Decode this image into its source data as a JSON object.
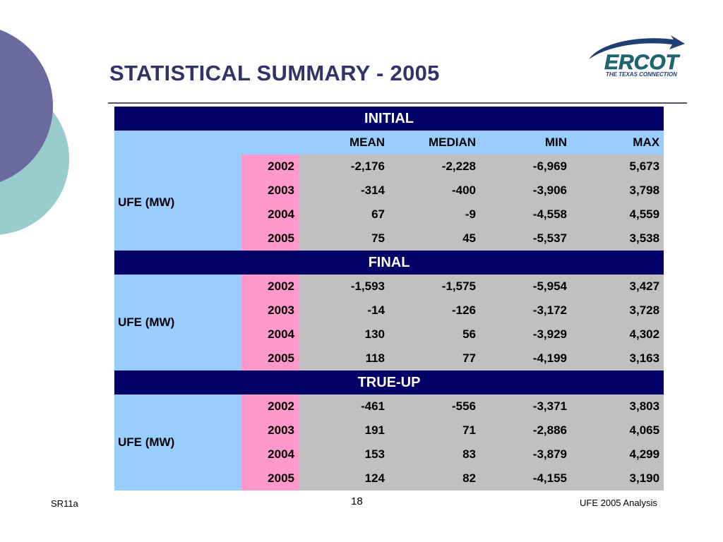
{
  "slide": {
    "title": "STATISTICAL SUMMARY - 2005",
    "colors": {
      "navy": "#000066",
      "blue": "#99ccff",
      "pink": "#ff99cc",
      "gray": "#c0c0c0",
      "title": "#333366",
      "circle_purple": "#6a6a9e",
      "circle_teal": "#99cccc"
    }
  },
  "logo": {
    "name": "ERCOT",
    "tagline": "THE TEXAS CONNECTION",
    "icon": "ercot-swoosh-icon"
  },
  "table": {
    "columns": [
      "MEAN",
      "MEDIAN",
      "MIN",
      "MAX"
    ],
    "sections": [
      {
        "name": "INITIAL",
        "row_label": "UFE (MW)",
        "rows": [
          {
            "year": "2002",
            "mean": "-2,176",
            "median": "-2,228",
            "min": "-6,969",
            "max": "5,673"
          },
          {
            "year": "2003",
            "mean": "-314",
            "median": "-400",
            "min": "-3,906",
            "max": "3,798"
          },
          {
            "year": "2004",
            "mean": "67",
            "median": "-9",
            "min": "-4,558",
            "max": "4,559"
          },
          {
            "year": "2005",
            "mean": "75",
            "median": "45",
            "min": "-5,537",
            "max": "3,538"
          }
        ]
      },
      {
        "name": "FINAL",
        "row_label": "UFE (MW)",
        "rows": [
          {
            "year": "2002",
            "mean": "-1,593",
            "median": "-1,575",
            "min": "-5,954",
            "max": "3,427"
          },
          {
            "year": "2003",
            "mean": "-14",
            "median": "-126",
            "min": "-3,172",
            "max": "3,728"
          },
          {
            "year": "2004",
            "mean": "130",
            "median": "56",
            "min": "-3,929",
            "max": "4,302"
          },
          {
            "year": "2005",
            "mean": "118",
            "median": "77",
            "min": "-4,199",
            "max": "3,163"
          }
        ]
      },
      {
        "name": "TRUE-UP",
        "row_label": "UFE (MW)",
        "rows": [
          {
            "year": "2002",
            "mean": "-461",
            "median": "-556",
            "min": "-3,371",
            "max": "3,803"
          },
          {
            "year": "2003",
            "mean": "191",
            "median": "71",
            "min": "-2,886",
            "max": "4,065"
          },
          {
            "year": "2004",
            "mean": "153",
            "median": "83",
            "min": "-3,879",
            "max": "4,299"
          },
          {
            "year": "2005",
            "mean": "124",
            "median": "82",
            "min": "-4,155",
            "max": "3,190"
          }
        ]
      }
    ]
  },
  "footer": {
    "left": "SR11a",
    "page": "18",
    "right": "UFE 2005 Analysis"
  }
}
